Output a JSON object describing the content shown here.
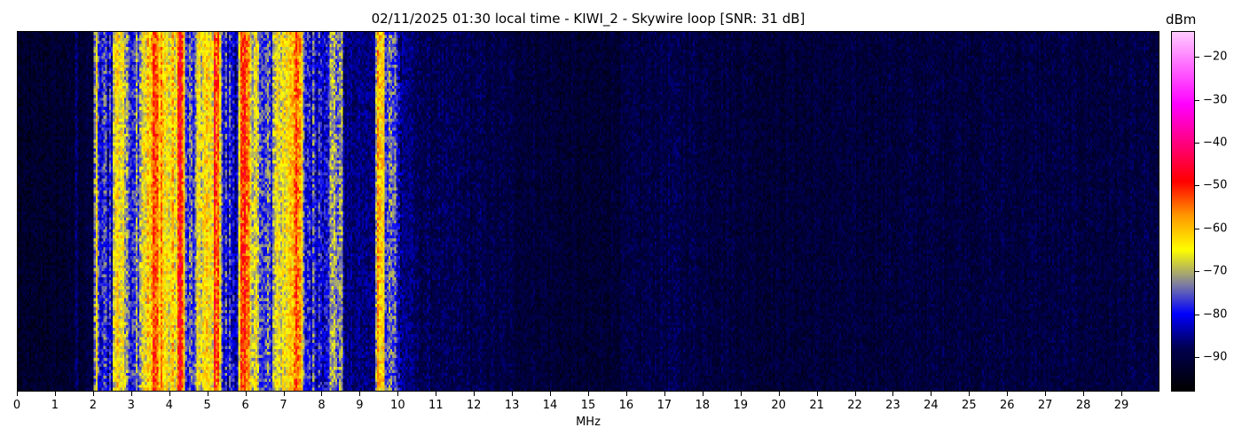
{
  "chart_data": {
    "type": "heatmap",
    "title": "02/11/2025 01:30 local time - KIWI_2 - Skywire loop [SNR: 31 dB]",
    "xlabel": "MHz",
    "ylabel": "",
    "xlim": [
      0,
      30
    ],
    "xticks": [
      "0",
      "1",
      "2",
      "3",
      "4",
      "5",
      "6",
      "7",
      "8",
      "9",
      "10",
      "11",
      "12",
      "13",
      "14",
      "15",
      "16",
      "17",
      "18",
      "19",
      "20",
      "21",
      "22",
      "23",
      "24",
      "25",
      "26",
      "27",
      "28",
      "29"
    ],
    "colorbar": {
      "label": "dBm",
      "range": [
        -98,
        -14
      ],
      "ticks": [
        "−20",
        "−30",
        "−40",
        "−50",
        "−60",
        "−70",
        "−80",
        "−90"
      ],
      "tick_values": [
        -20,
        -30,
        -40,
        -50,
        -60,
        -70,
        -80,
        -90
      ],
      "colormap": [
        [
          -98,
          "#000000"
        ],
        [
          -88,
          "#000050"
        ],
        [
          -80,
          "#0000ff"
        ],
        [
          -73,
          "#8080a0"
        ],
        [
          -65,
          "#ffff00"
        ],
        [
          -57,
          "#ff9900"
        ],
        [
          -49,
          "#ff0000"
        ],
        [
          -31,
          "#ff00ff"
        ],
        [
          -14,
          "#ffccff"
        ]
      ]
    },
    "band_profile_dbm": [
      [
        0,
        -93
      ],
      [
        1.5,
        -92
      ],
      [
        1.55,
        -82
      ],
      [
        1.6,
        -92
      ],
      [
        2.0,
        -90
      ],
      [
        2.05,
        -55
      ],
      [
        2.1,
        -80
      ],
      [
        2.5,
        -78
      ],
      [
        2.55,
        -63
      ],
      [
        2.8,
        -64
      ],
      [
        2.85,
        -77
      ],
      [
        3.2,
        -72
      ],
      [
        3.25,
        -64
      ],
      [
        3.5,
        -63
      ],
      [
        3.55,
        -55
      ],
      [
        3.8,
        -57
      ],
      [
        3.85,
        -65
      ],
      [
        4.2,
        -64
      ],
      [
        4.25,
        -48
      ],
      [
        4.35,
        -48
      ],
      [
        4.4,
        -78
      ],
      [
        4.7,
        -76
      ],
      [
        4.75,
        -65
      ],
      [
        5.1,
        -66
      ],
      [
        5.2,
        -50
      ],
      [
        5.3,
        -50
      ],
      [
        5.35,
        -80
      ],
      [
        5.8,
        -80
      ],
      [
        5.85,
        -55
      ],
      [
        6.05,
        -56
      ],
      [
        6.1,
        -64
      ],
      [
        6.3,
        -65
      ],
      [
        6.35,
        -78
      ],
      [
        6.7,
        -77
      ],
      [
        6.75,
        -65
      ],
      [
        7.0,
        -66
      ],
      [
        7.2,
        -57
      ],
      [
        7.45,
        -58
      ],
      [
        7.5,
        -78
      ],
      [
        8.0,
        -79
      ],
      [
        8.3,
        -72
      ],
      [
        8.5,
        -72
      ],
      [
        8.6,
        -86
      ],
      [
        9.4,
        -86
      ],
      [
        9.45,
        -60
      ],
      [
        9.6,
        -58
      ],
      [
        9.65,
        -72
      ],
      [
        9.9,
        -74
      ],
      [
        10.0,
        -84
      ],
      [
        10.5,
        -88
      ],
      [
        12,
        -89
      ],
      [
        14,
        -91
      ],
      [
        15,
        -92
      ],
      [
        17,
        -89
      ],
      [
        20,
        -91
      ],
      [
        25,
        -90
      ],
      [
        30,
        -90
      ]
    ]
  }
}
